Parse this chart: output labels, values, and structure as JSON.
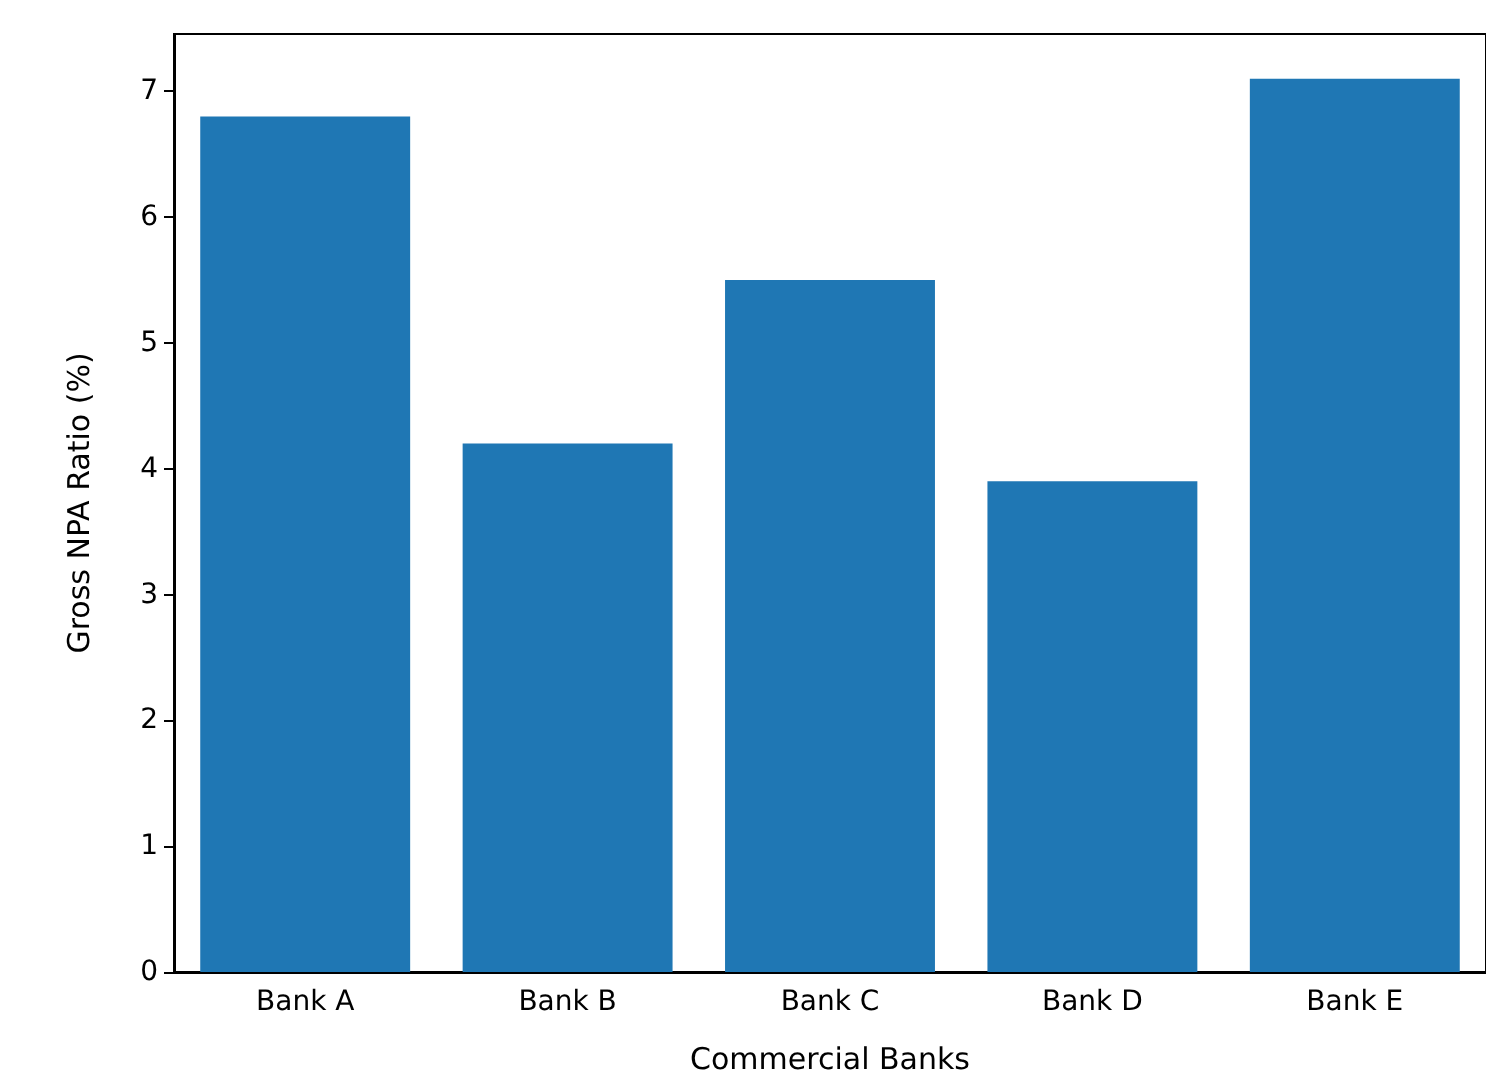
{
  "chart_data": {
    "type": "bar",
    "xlabel": "Commercial Banks",
    "ylabel": "Gross NPA Ratio (%)",
    "categories": [
      "Bank A",
      "Bank B",
      "Bank C",
      "Bank D",
      "Bank E"
    ],
    "values": [
      6.8,
      4.2,
      5.5,
      3.9,
      7.1
    ],
    "color": "#1f77b4",
    "ylim": [
      0,
      7.455
    ],
    "yticks": [
      0,
      1,
      2,
      3,
      4,
      5,
      6,
      7
    ],
    "grid": false
  }
}
